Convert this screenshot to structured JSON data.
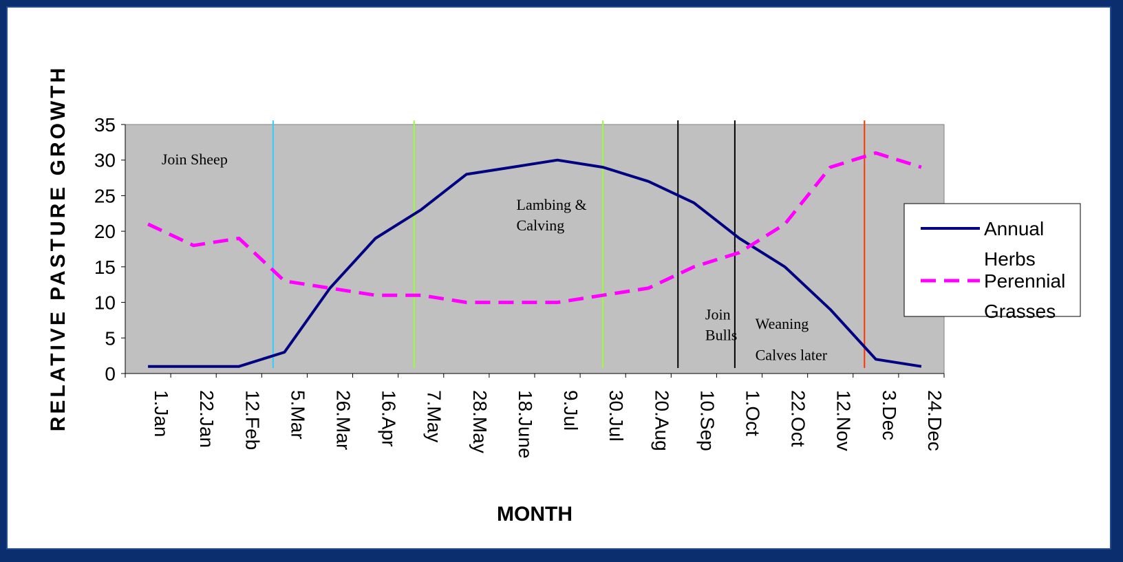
{
  "chart_data": {
    "type": "line",
    "xlabel": "MONTH",
    "ylabel": "RELATIVE PASTURE GROWTH",
    "ylim": [
      0,
      35
    ],
    "yticks": [
      "0",
      "5",
      "10",
      "15",
      "20",
      "25",
      "30",
      "35"
    ],
    "grid": false,
    "legend_position": "right",
    "plot_background": "#c0c0c0",
    "categories": [
      "1.Jan",
      "22.Jan",
      "12.Feb",
      "5.Mar",
      "26.Mar",
      "16.Apr",
      "7.May",
      "28.May",
      "18.June",
      "9.Jul",
      "30.Jul",
      "20.Aug",
      "10.Sep",
      "1.Oct",
      "22.Oct",
      "12.Nov",
      "3.Dec",
      "24.Dec"
    ],
    "series": [
      {
        "name": "Annual Herbs",
        "name_lines": [
          "Annual",
          "Herbs"
        ],
        "color": "#000080",
        "dash": "solid",
        "values": [
          1,
          1,
          1,
          3,
          12,
          19,
          23,
          28,
          29,
          30,
          29,
          27,
          24,
          19,
          15,
          9,
          2,
          1
        ]
      },
      {
        "name": "Perennial Grasses",
        "name_lines": [
          "Perennial",
          "Grasses"
        ],
        "color": "#ff00ff",
        "dash": "dashed",
        "values": [
          21,
          18,
          19,
          13,
          12,
          11,
          11,
          10,
          10,
          10,
          11,
          12,
          15,
          17,
          21,
          29,
          31,
          29
        ]
      }
    ],
    "annotations": [
      {
        "lines": [
          "Join Sheep"
        ],
        "x": 0.8,
        "y": 29.4
      },
      {
        "lines": [
          "Lambing &",
          "Calving"
        ],
        "x": 8.6,
        "y": 23.0
      },
      {
        "lines": [
          "Join",
          "Bulls"
        ],
        "x": 12.75,
        "y": 7.6
      },
      {
        "lines": [
          "Weaning"
        ],
        "x": 13.85,
        "y": 6.3
      },
      {
        "lines": [
          "Calves later"
        ],
        "x": 13.85,
        "y": 1.9
      }
    ],
    "markers": [
      {
        "x": 2.75,
        "color": "#33ccff"
      },
      {
        "x": 5.85,
        "color": "#99ff33"
      },
      {
        "x": 10.0,
        "color": "#99ff33"
      },
      {
        "x": 11.65,
        "color": "#000000"
      },
      {
        "x": 12.9,
        "color": "#000000"
      },
      {
        "x": 15.75,
        "color": "#ff3300"
      }
    ]
  }
}
